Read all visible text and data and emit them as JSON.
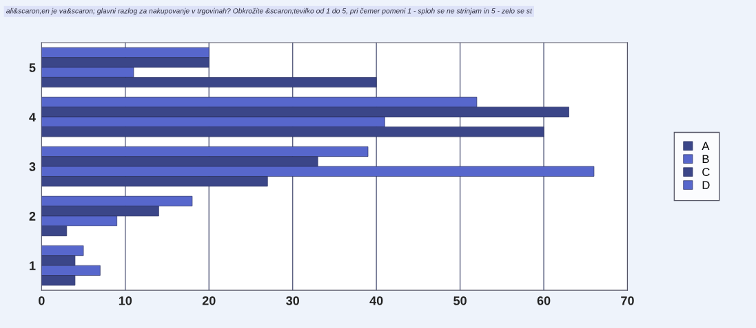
{
  "chart_data": {
    "type": "bar",
    "orientation": "horizontal",
    "title": "ali&scaron;en je va&scaron; glavni razlog za nakupovanje v trgovinah? Obkrožite &scaron;tevilko od 1 do 5, pri čemer pomeni 1 - sploh se ne strinjam in 5 - zelo se st",
    "categories": [
      "5",
      "4",
      "3",
      "2",
      "1"
    ],
    "series": [
      {
        "name": "D",
        "color": "#5767cc",
        "values": [
          20,
          52,
          39,
          18,
          5
        ]
      },
      {
        "name": "C",
        "color": "#3b4688",
        "values": [
          20,
          63,
          33,
          14,
          4
        ]
      },
      {
        "name": "B",
        "color": "#5767cc",
        "values": [
          11,
          41,
          66,
          9,
          7
        ]
      },
      {
        "name": "A",
        "color": "#3b4688",
        "values": [
          40,
          60,
          27,
          3,
          4
        ]
      }
    ],
    "xlim": [
      0,
      70
    ],
    "xticks": [
      0,
      10,
      20,
      30,
      40,
      50,
      60,
      70
    ],
    "grid": "x",
    "legend": "right"
  }
}
